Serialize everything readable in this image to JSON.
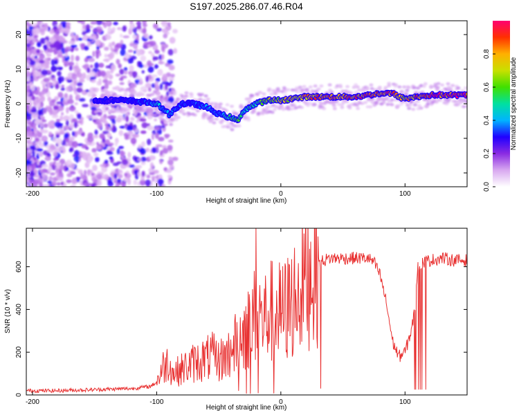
{
  "title": "S197.2025.286.07.46.R04",
  "chart_data": [
    {
      "type": "heatmap",
      "name": "spectrogram",
      "xlabel": "Height of straight line (km)",
      "ylabel": "Frequency (Hz)",
      "xlim": [
        -205,
        150
      ],
      "ylim": [
        -24,
        24
      ],
      "xticks": [
        -200,
        -100,
        0,
        100
      ],
      "yticks": [
        -20,
        -10,
        0,
        10,
        20
      ],
      "colorbar": {
        "label": "Normalized spectral amplitude",
        "range": [
          0,
          1
        ],
        "ticks": [
          0.0,
          0.2,
          0.4,
          0.6,
          0.8
        ],
        "colormap": [
          "#ffffff",
          "#d8a8f0",
          "#8a2be2",
          "#2000ff",
          "#00b4ff",
          "#00e0a0",
          "#40e000",
          "#c8e000",
          "#ffb000",
          "#ff3000",
          "#ff0070"
        ]
      },
      "ridge": {
        "description": "dominant frequency track",
        "x": [
          -150,
          -130,
          -110,
          -100,
          -90,
          -80,
          -70,
          -60,
          -50,
          -40,
          -35,
          -30,
          -20,
          -10,
          0,
          10,
          20,
          40,
          60,
          80,
          90,
          95,
          100,
          110,
          120,
          150
        ],
        "y": [
          1,
          1,
          0.5,
          0,
          -3,
          0,
          0,
          -1,
          -3,
          -4,
          -5,
          -2,
          0,
          1,
          1,
          1.5,
          2,
          2,
          2,
          3,
          3,
          2,
          1.5,
          2,
          2.5,
          2.5
        ],
        "amplitude": [
          0.3,
          0.3,
          0.35,
          0.45,
          0.4,
          0.35,
          0.35,
          0.4,
          0.4,
          0.55,
          0.6,
          0.5,
          0.55,
          0.7,
          0.75,
          0.8,
          0.85,
          0.9,
          0.9,
          0.95,
          0.95,
          0.85,
          0.8,
          0.95,
          1.0,
          1.0
        ]
      }
    },
    {
      "type": "line",
      "name": "snr",
      "xlabel": "Height of straight line (km)",
      "ylabel": "SNR (10 * v/v)",
      "xlim": [
        -205,
        150
      ],
      "ylim": [
        0,
        780
      ],
      "xticks": [
        -200,
        -100,
        0,
        100
      ],
      "yticks": [
        0,
        200,
        400,
        600
      ],
      "color": "#e83030",
      "series": [
        {
          "name": "SNR",
          "x": [
            -205,
            -180,
            -150,
            -120,
            -105,
            -100,
            -95,
            -90,
            -87,
            -80,
            -70,
            -60,
            -55,
            -50,
            -45,
            -40,
            -35,
            -30,
            -25,
            -22,
            -20,
            -15,
            -10,
            -5,
            0,
            5,
            10,
            15,
            20,
            25,
            30,
            35,
            40,
            50,
            60,
            70,
            75,
            80,
            85,
            90,
            95,
            100,
            105,
            108,
            110,
            115,
            120,
            130,
            140,
            150
          ],
          "y": [
            20,
            20,
            25,
            30,
            40,
            60,
            130,
            160,
            100,
            120,
            150,
            170,
            180,
            160,
            180,
            200,
            250,
            300,
            320,
            350,
            400,
            350,
            380,
            400,
            380,
            400,
            450,
            500,
            560,
            600,
            620,
            630,
            640,
            640,
            640,
            640,
            620,
            560,
            430,
            250,
            180,
            200,
            300,
            400,
            600,
            620,
            630,
            640,
            630,
            630
          ]
        }
      ]
    }
  ]
}
